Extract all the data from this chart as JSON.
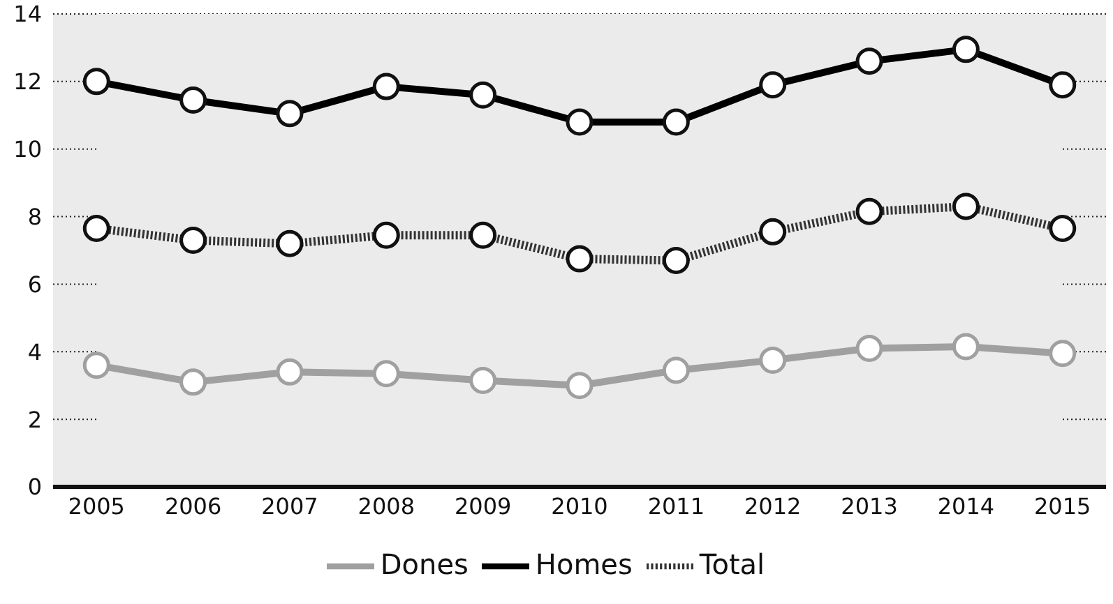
{
  "chart_data": {
    "type": "line",
    "categories": [
      "2005",
      "2006",
      "2007",
      "2008",
      "2009",
      "2010",
      "2011",
      "2012",
      "2013",
      "2014",
      "2015"
    ],
    "series": [
      {
        "name": "Homes",
        "color": "#000000",
        "line_style": "solid",
        "values": [
          12.0,
          11.45,
          11.05,
          11.85,
          11.6,
          10.8,
          10.8,
          11.9,
          12.6,
          12.95,
          11.9
        ]
      },
      {
        "name": "Dones",
        "color": "#a0a0a0",
        "line_style": "solid",
        "values": [
          3.6,
          3.1,
          3.4,
          3.35,
          3.15,
          3.0,
          3.45,
          3.75,
          4.1,
          4.15,
          3.95
        ]
      },
      {
        "name": "Total",
        "color": "#333333",
        "line_style": "dotted",
        "values": [
          7.65,
          7.3,
          7.2,
          7.45,
          7.45,
          6.75,
          6.7,
          7.55,
          8.15,
          8.3,
          7.65
        ]
      }
    ],
    "ylim": [
      0,
      14
    ],
    "yticks": [
      0,
      2,
      4,
      6,
      8,
      10,
      12,
      14
    ],
    "grid": "y",
    "legend": "bottom",
    "marker": "circle"
  }
}
